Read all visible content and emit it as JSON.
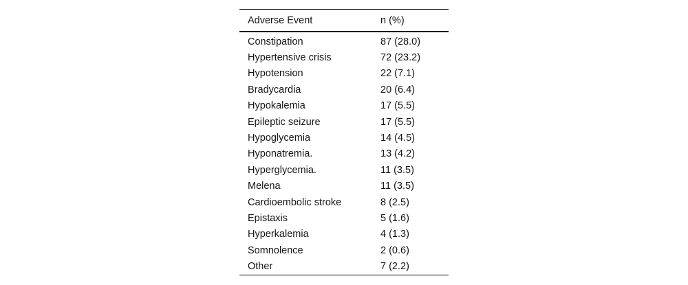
{
  "table": {
    "columns": [
      "Adverse Event",
      "n (%)"
    ],
    "rows": [
      {
        "event": "Constipation",
        "n_pct": "87 (28.0)"
      },
      {
        "event": "Hypertensive crisis",
        "n_pct": "72 (23.2)"
      },
      {
        "event": "Hypotension",
        "n_pct": "22 (7.1)"
      },
      {
        "event": "Bradycardia",
        "n_pct": "20 (6.4)"
      },
      {
        "event": "Hypokalemia",
        "n_pct": "17 (5.5)"
      },
      {
        "event": "Epileptic seizure",
        "n_pct": "17 (5.5)"
      },
      {
        "event": "Hypoglycemia",
        "n_pct": "14 (4.5)"
      },
      {
        "event": "Hyponatremia.",
        "n_pct": "13 (4.2)"
      },
      {
        "event": "Hyperglycemia.",
        "n_pct": "11 (3.5)"
      },
      {
        "event": "Melena",
        "n_pct": "11 (3.5)"
      },
      {
        "event": "Cardioembolic stroke",
        "n_pct": "8 (2.5)"
      },
      {
        "event": "Epistaxis",
        "n_pct": "5 (1.6)"
      },
      {
        "event": "Hyperkalemia",
        "n_pct": "4 (1.3)"
      },
      {
        "event": "Somnolence",
        "n_pct": "2 (0.6)"
      },
      {
        "event": "Other",
        "n_pct": "7 (2.2)"
      }
    ]
  },
  "styles": {
    "background": "#ffffff",
    "text_color": "#141414",
    "rule_color": "#000000"
  }
}
